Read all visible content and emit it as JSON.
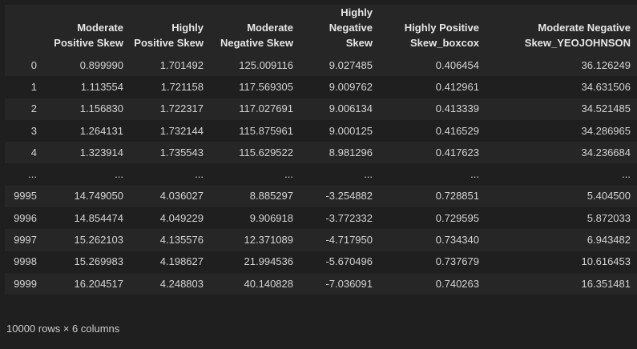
{
  "dataframe": {
    "columns": [
      "",
      "Moderate Positive Skew",
      "Highly Positive Skew",
      "Moderate Negative Skew",
      "Highly Negative Skew",
      "Highly Positive Skew_boxcox",
      "Moderate Negative Skew_YEOJOHNSON"
    ],
    "rows": [
      [
        "0",
        "0.899990",
        "1.701492",
        "125.009116",
        "9.027485",
        "0.406454",
        "36.126249"
      ],
      [
        "1",
        "1.113554",
        "1.721158",
        "117.569305",
        "9.009762",
        "0.412961",
        "34.631506"
      ],
      [
        "2",
        "1.156830",
        "1.722317",
        "117.027691",
        "9.006134",
        "0.413339",
        "34.521485"
      ],
      [
        "3",
        "1.264131",
        "1.732144",
        "115.875961",
        "9.000125",
        "0.416529",
        "34.286965"
      ],
      [
        "4",
        "1.323914",
        "1.735543",
        "115.629522",
        "8.981296",
        "0.417623",
        "34.236684"
      ],
      [
        "...",
        "...",
        "...",
        "...",
        "...",
        "...",
        "..."
      ],
      [
        "9995",
        "14.749050",
        "4.036027",
        "8.885297",
        "-3.254882",
        "0.728851",
        "5.404500"
      ],
      [
        "9996",
        "14.854474",
        "4.049229",
        "9.906918",
        "-3.772332",
        "0.729595",
        "5.872033"
      ],
      [
        "9997",
        "15.262103",
        "4.135576",
        "12.371089",
        "-4.717950",
        "0.734340",
        "6.943482"
      ],
      [
        "9998",
        "15.269983",
        "4.198627",
        "21.994536",
        "-5.670496",
        "0.737679",
        "10.616453"
      ],
      [
        "9999",
        "16.204517",
        "4.248803",
        "40.140828",
        "-7.036091",
        "0.740263",
        "16.351481"
      ]
    ],
    "shape_text": "10000 rows × 6 columns"
  },
  "colors": {
    "background": "#1f1f1f",
    "stripe": "#262626",
    "text": "#d4d4d4",
    "header_text": "#e6e6e6"
  }
}
